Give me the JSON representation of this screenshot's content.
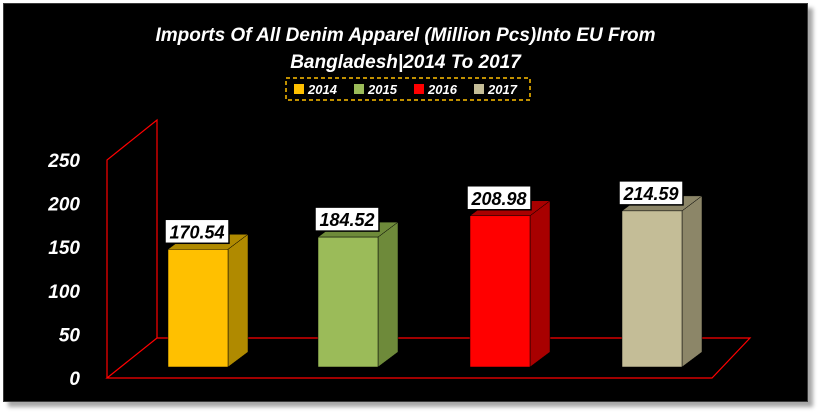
{
  "chart_data": {
    "type": "bar",
    "title_line1": "Imports Of All Denim Apparel (Million Pcs)Into EU From",
    "title_line2": "Bangladesh|2014 To 2017",
    "categories": [
      "2014",
      "2015",
      "2016",
      "2017"
    ],
    "values": [
      170.54,
      184.52,
      208.98,
      214.59
    ],
    "value_labels": [
      "170.54",
      "184.52",
      "208.98",
      "214.59"
    ],
    "colors": [
      "#FFC000",
      "#9BBB59",
      "#FF0000",
      "#C4BD97"
    ],
    "side_colors": [
      "#B08A00",
      "#6E8A3A",
      "#A80000",
      "#8C8668"
    ],
    "legend": [
      "2014",
      "2015",
      "2016",
      "2017"
    ],
    "legend_placement": "top-center",
    "ylim": [
      0,
      250
    ],
    "yticks": [
      "0",
      "50",
      "100",
      "150",
      "200",
      "250"
    ],
    "grid": false,
    "axis_color": "#FF0000"
  }
}
